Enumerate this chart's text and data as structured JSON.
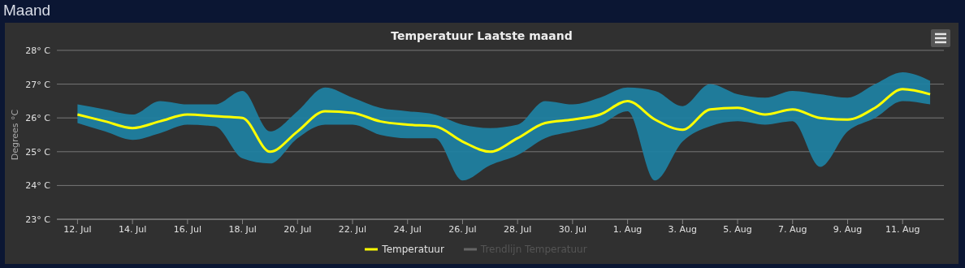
{
  "chart_data": {
    "type": "line",
    "title": "Temperatuur Laatste maand",
    "ylabel": "Degrees °C",
    "annotations": [
      "Maand"
    ],
    "x": [
      "--07-12",
      "--07-13",
      "--07-14",
      "--07-15",
      "--07-16",
      "--07-17",
      "--07-18",
      "--07-19",
      "--07-20",
      "--07-21",
      "--07-22",
      "--07-23",
      "--07-24",
      "--07-25",
      "--07-26",
      "--07-27",
      "--07-28",
      "--07-29",
      "--07-30",
      "--07-31",
      "--08-01",
      "--08-02",
      "--08-03",
      "--08-04",
      "--08-05",
      "--08-06",
      "--08-07",
      "--08-08",
      "--08-09",
      "--08-10",
      "--08-11",
      "--08-12"
    ],
    "series": [
      {
        "name": "Temperatuur",
        "color": "#ffff00",
        "values": [
          26.1,
          25.9,
          25.7,
          25.9,
          26.1,
          26.05,
          26.0,
          25.0,
          25.6,
          26.2,
          26.15,
          25.9,
          25.8,
          25.75,
          25.3,
          25.0,
          25.4,
          25.85,
          25.95,
          26.1,
          26.5,
          25.95,
          25.65,
          26.25,
          26.3,
          26.1,
          26.25,
          26.0,
          25.95,
          26.3,
          26.85,
          26.7
        ],
        "lower": [
          25.85,
          25.6,
          25.35,
          25.55,
          25.8,
          25.75,
          24.8,
          24.65,
          25.4,
          25.8,
          25.8,
          25.5,
          25.4,
          25.4,
          24.15,
          24.6,
          24.9,
          25.4,
          25.6,
          25.8,
          26.2,
          24.15,
          25.3,
          25.75,
          25.9,
          25.8,
          25.9,
          24.55,
          25.6,
          26.0,
          26.5,
          26.4
        ],
        "upper": [
          26.4,
          26.25,
          26.1,
          26.5,
          26.4,
          26.4,
          26.8,
          25.6,
          26.2,
          26.9,
          26.6,
          26.3,
          26.2,
          26.1,
          25.8,
          25.7,
          25.8,
          26.5,
          26.4,
          26.6,
          26.9,
          26.8,
          26.35,
          27.0,
          26.7,
          26.6,
          26.8,
          26.7,
          26.6,
          27.0,
          27.35,
          27.1
        ]
      },
      {
        "name": "Trendlijn Temperatuur",
        "color": "#666666",
        "values": [
          null,
          null,
          null,
          null,
          null,
          null,
          null,
          null,
          null,
          null,
          null,
          null,
          null,
          null,
          null,
          null,
          null,
          null,
          null,
          null,
          null,
          null,
          null,
          null,
          null,
          null,
          null,
          null,
          null,
          null,
          null,
          null
        ]
      }
    ],
    "xlim": [
      "--07-11T06:00",
      "--08-12T12:00"
    ],
    "xticks": [
      {
        "value": "--07-12",
        "label": "12. Jul"
      },
      {
        "value": "--07-14",
        "label": "14. Jul"
      },
      {
        "value": "--07-16",
        "label": "16. Jul"
      },
      {
        "value": "--07-18",
        "label": "18. Jul"
      },
      {
        "value": "--07-20",
        "label": "20. Jul"
      },
      {
        "value": "--07-22",
        "label": "22. Jul"
      },
      {
        "value": "--07-24",
        "label": "24. Jul"
      },
      {
        "value": "--07-26",
        "label": "26. Jul"
      },
      {
        "value": "--07-28",
        "label": "28. Jul"
      },
      {
        "value": "--07-30",
        "label": "30. Jul"
      },
      {
        "value": "--08-01",
        "label": "1. Aug"
      },
      {
        "value": "--08-03",
        "label": "3. Aug"
      },
      {
        "value": "--08-05",
        "label": "5. Aug"
      },
      {
        "value": "--08-07",
        "label": "7. Aug"
      },
      {
        "value": "--08-09",
        "label": "9. Aug"
      },
      {
        "value": "--08-11",
        "label": "11. Aug"
      }
    ],
    "ylim": [
      23,
      28
    ],
    "yticks": [
      {
        "value": 23,
        "label": "23° C"
      },
      {
        "value": 24,
        "label": "24° C"
      },
      {
        "value": 25,
        "label": "25° C"
      },
      {
        "value": 26,
        "label": "26° C"
      },
      {
        "value": 27,
        "label": "27° C"
      },
      {
        "value": 28,
        "label": "28° C"
      }
    ],
    "grid": "y",
    "legend": "bottom",
    "marker": "none",
    "line_style": "solid"
  }
}
